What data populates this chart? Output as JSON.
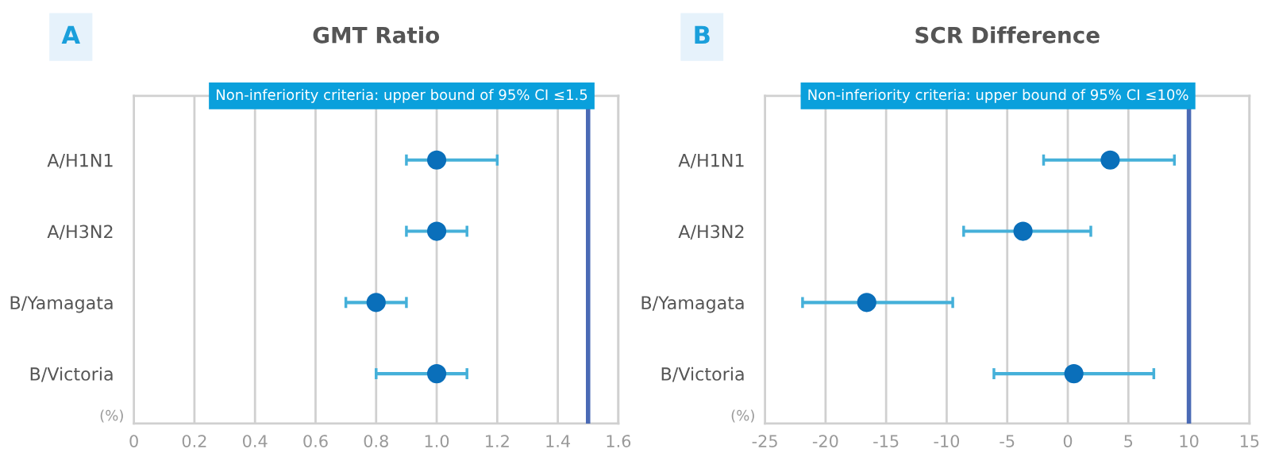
{
  "chart_data": [
    {
      "type": "scatter",
      "orientation": "horizontal",
      "title": "GMT Ratio",
      "annotations": [
        "A",
        "(%)"
      ],
      "categories": [
        "A/H1N1",
        "A/H3N2",
        "B/Yamagata",
        "B/Victoria"
      ],
      "series": [
        {
          "color": "#0a6fba",
          "values": [
            1.0,
            1.0,
            0.8,
            1.0
          ],
          "errors": [
            [
              0.9,
              1.2
            ],
            [
              0.9,
              1.1
            ],
            [
              0.7,
              0.9
            ],
            [
              0.8,
              1.1
            ]
          ]
        }
      ],
      "xlim": [
        0,
        1.6
      ],
      "xticks": [
        0,
        0.2,
        0.4,
        0.6,
        0.8,
        {
          "value": 1.0,
          "label": "1.0"
        },
        1.2,
        1.4,
        1.6
      ],
      "ref_lines": [
        {
          "axis": "x",
          "value": 1.5,
          "label": "Non-inferiority criteria: upper bound of 95% CI ≤1.5",
          "color": "#4a6ab5"
        }
      ],
      "grid": "x",
      "marker": "circle",
      "legend": false
    },
    {
      "type": "scatter",
      "orientation": "horizontal",
      "title": "SCR Difference",
      "annotations": [
        "B",
        "(%)"
      ],
      "categories": [
        "A/H1N1",
        "A/H3N2",
        "B/Yamagata",
        "B/Victoria"
      ],
      "series": [
        {
          "color": "#0a6fba",
          "values": [
            3.5,
            -3.7,
            -16.6,
            0.5
          ],
          "errors": [
            [
              -2.0,
              8.8
            ],
            [
              -8.6,
              1.9
            ],
            [
              -21.9,
              -9.5
            ],
            [
              -6.1,
              7.1
            ]
          ]
        }
      ],
      "xlim": [
        -25,
        15
      ],
      "xticks": [
        -25,
        -20,
        -15,
        -10,
        -5,
        0,
        5,
        10,
        15
      ],
      "ref_lines": [
        {
          "axis": "x",
          "value": 10,
          "label": "Non-inferiority criteria: upper bound of 95% CI ≤10%",
          "color": "#4a6ab5"
        }
      ],
      "grid": "x",
      "marker": "circle",
      "legend": false
    }
  ]
}
